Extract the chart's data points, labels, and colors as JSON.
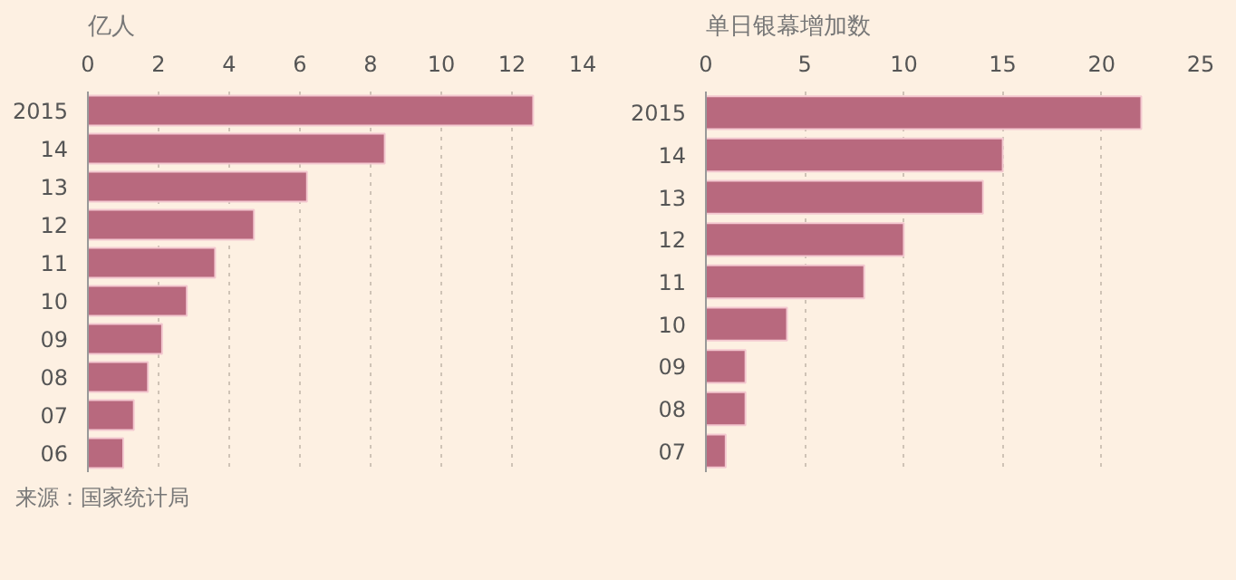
{
  "chart_data": [
    {
      "type": "bar",
      "orientation": "horizontal",
      "title": "亿人",
      "categories": [
        "2015",
        "14",
        "13",
        "12",
        "11",
        "10",
        "09",
        "08",
        "07",
        "06"
      ],
      "values": [
        12.6,
        8.4,
        6.2,
        4.7,
        3.6,
        2.8,
        2.1,
        1.7,
        1.3,
        1.0
      ],
      "color": "#b8697e",
      "xlim": [
        0,
        14
      ],
      "xticks": [
        0,
        2,
        4,
        6,
        8,
        10,
        12,
        14
      ],
      "grid": "x",
      "annotations": [
        "来源：国家统计局"
      ]
    },
    {
      "type": "bar",
      "orientation": "horizontal",
      "title": "单日银幕增加数",
      "categories": [
        "2015",
        "14",
        "13",
        "12",
        "11",
        "10",
        "09",
        "08",
        "07"
      ],
      "values": [
        22.0,
        15.0,
        14.0,
        10.0,
        8.0,
        4.1,
        2.0,
        2.0,
        1.0
      ],
      "color": "#b8697e",
      "xlim": [
        0,
        25
      ],
      "xticks": [
        0,
        5,
        10,
        15,
        20,
        25
      ],
      "grid": "x"
    }
  ]
}
